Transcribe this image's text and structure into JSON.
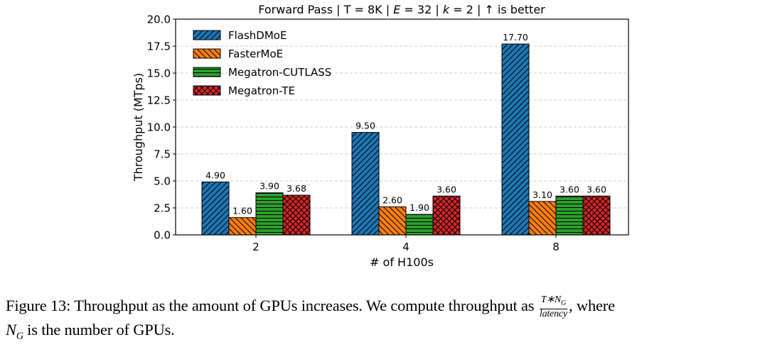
{
  "chart_data": {
    "type": "bar",
    "title": "Forward Pass | T = 8K | E = 32 | k = 2 |  ↑  is better",
    "title_parts": {
      "a": "Forward Pass | T = 8K | ",
      "E": "E",
      "b": " = 32 | ",
      "k": "k",
      "c": " = 2 |  ↑  is better"
    },
    "xlabel": "# of H100s",
    "ylabel": "Throughput (MTps)",
    "ylim": [
      0,
      20
    ],
    "yticks": [
      "0.0",
      "2.5",
      "5.0",
      "7.5",
      "10.0",
      "12.5",
      "15.0",
      "17.5",
      "20.0"
    ],
    "grid": "y dashed",
    "legend_position": "top-left",
    "categories": [
      "2",
      "4",
      "8"
    ],
    "series": [
      {
        "name": "FlashDMoE",
        "values": [
          4.9,
          9.5,
          17.7
        ],
        "labels": [
          "4.90",
          "9.50",
          "17.70"
        ],
        "color": "#1f77b4",
        "hatch": "forward-diagonal"
      },
      {
        "name": "FasterMoE",
        "values": [
          1.6,
          2.6,
          3.1
        ],
        "labels": [
          "1.60",
          "2.60",
          "3.10"
        ],
        "color": "#ff7f0e",
        "hatch": "back-diagonal"
      },
      {
        "name": "Megatron-CUTLASS",
        "values": [
          3.9,
          1.9,
          3.6
        ],
        "labels": [
          "3.90",
          "1.90",
          "3.60"
        ],
        "color": "#2ca02c",
        "hatch": "horizontal"
      },
      {
        "name": "Megatron-TE",
        "values": [
          3.68,
          3.6,
          3.6
        ],
        "labels": [
          "3.68",
          "3.60",
          "3.60"
        ],
        "color": "#d62728",
        "hatch": "crosshatch"
      }
    ]
  },
  "caption": {
    "prefix": "Figure 13: Throughput as the amount of GPUs increases. We compute throughput as ",
    "frac_num": "T∗N",
    "frac_num_sub": "G",
    "frac_den": "latency",
    "suffix": ", where",
    "line2_var": "N",
    "line2_sub": "G",
    "line2_rest": " is the number of GPUs."
  }
}
